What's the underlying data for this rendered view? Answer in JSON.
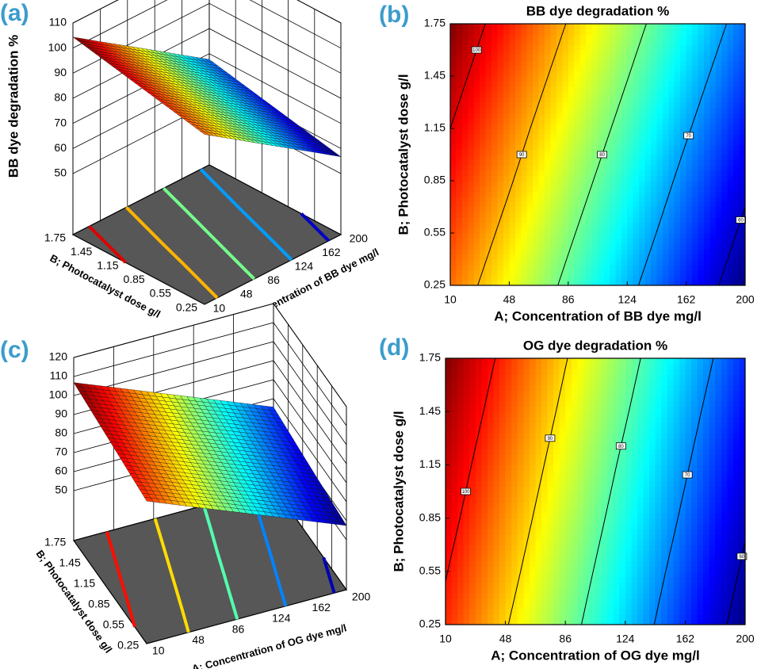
{
  "chart_data": [
    {
      "type": "surface",
      "panel_label": "(a)",
      "zlabel": "BB dye degradation %",
      "xlabel": "A; Concentration of BB dye mg/l",
      "ylabel": "B; Photocatalyst dose g/l",
      "x": [
        10,
        48,
        86,
        124,
        162,
        200
      ],
      "y": [
        0.25,
        0.55,
        0.85,
        1.15,
        1.45,
        1.75
      ],
      "z": [
        [
          93.4,
          86.1,
          78.7,
          71.4,
          64.1,
          56.7
        ],
        [
          95.6,
          88.3,
          80.9,
          73.6,
          66.3,
          58.9
        ],
        [
          97.8,
          90.5,
          83.1,
          75.8,
          68.4,
          61.1
        ],
        [
          100.0,
          92.6,
          85.3,
          78.0,
          70.6,
          63.3
        ],
        [
          102.2,
          94.8,
          87.5,
          80.2,
          72.8,
          65.5
        ],
        [
          104.4,
          97.0,
          89.7,
          82.4,
          75.0,
          67.7
        ]
      ],
      "xlim": [
        10,
        200
      ],
      "ylim": [
        0.25,
        1.75
      ],
      "zlim": [
        50,
        110
      ],
      "xticks": [
        10,
        48,
        86,
        124,
        162,
        200
      ],
      "yticks": [
        0.25,
        0.55,
        0.85,
        1.15,
        1.45,
        1.75
      ],
      "zticks": [
        50,
        60,
        70,
        80,
        90,
        100,
        110
      ],
      "contour_levels": [
        60,
        70,
        80,
        90,
        100
      ],
      "colormap": "jet",
      "floor_color": "#575757"
    },
    {
      "type": "contour",
      "panel_label": "(b)",
      "title": "BB dye degradation %",
      "xlabel": "A; Concentration of BB dye mg/l",
      "ylabel": "B; Photocatalyst dose g/l",
      "x": [
        10,
        48,
        86,
        124,
        162,
        200
      ],
      "y": [
        0.25,
        0.55,
        0.85,
        1.15,
        1.45,
        1.75
      ],
      "z": [
        [
          93.4,
          86.1,
          78.7,
          71.4,
          64.1,
          56.7
        ],
        [
          95.6,
          88.3,
          80.9,
          73.6,
          66.3,
          58.9
        ],
        [
          97.8,
          90.5,
          83.1,
          75.8,
          68.4,
          61.1
        ],
        [
          100.0,
          92.6,
          85.3,
          78.0,
          70.6,
          63.3
        ],
        [
          102.2,
          94.8,
          87.5,
          80.2,
          72.8,
          65.5
        ],
        [
          104.4,
          97.0,
          89.7,
          82.4,
          75.0,
          67.7
        ]
      ],
      "xlim": [
        10,
        200
      ],
      "ylim": [
        0.25,
        1.75
      ],
      "xticks": [
        10,
        48,
        86,
        124,
        162,
        200
      ],
      "yticks": [
        0.25,
        0.55,
        0.85,
        1.15,
        1.45,
        1.75
      ],
      "contour_levels": [
        60,
        70,
        80,
        90,
        100
      ],
      "colormap": "jet"
    },
    {
      "type": "surface",
      "panel_label": "(c)",
      "xlabel": "A; Concentration of OG dye mg/l",
      "ylabel": "B; Photocatalyst dose g/l",
      "x": [
        10,
        48,
        86,
        124,
        162,
        200
      ],
      "y": [
        0.25,
        0.55,
        0.85,
        1.15,
        1.45,
        1.75
      ],
      "z": [
        [
          98.7,
          90.4,
          82.2,
          74.0,
          65.7,
          57.5
        ],
        [
          100.3,
          92.1,
          83.8,
          75.6,
          67.3,
          59.1
        ],
        [
          102.0,
          93.7,
          85.5,
          77.2,
          69.0,
          60.7
        ],
        [
          103.6,
          95.3,
          87.1,
          78.8,
          70.6,
          62.3
        ],
        [
          105.2,
          97.0,
          88.7,
          80.5,
          72.2,
          64.0
        ],
        [
          106.8,
          98.6,
          90.3,
          82.1,
          73.9,
          65.6
        ]
      ],
      "xlim": [
        10,
        200
      ],
      "ylim": [
        0.25,
        1.75
      ],
      "zlim": [
        50,
        120
      ],
      "xticks": [
        10,
        48,
        86,
        124,
        162,
        200
      ],
      "yticks": [
        0.25,
        0.55,
        0.85,
        1.15,
        1.45,
        1.75
      ],
      "zticks": [
        50,
        60,
        70,
        80,
        90,
        100,
        110,
        120
      ],
      "contour_levels": [
        60,
        70,
        80,
        90,
        100
      ],
      "colormap": "jet",
      "floor_color": "#575757"
    },
    {
      "type": "contour",
      "panel_label": "(d)",
      "title": "OG dye degradation %",
      "xlabel": "A; Concentration of OG dye mg/l",
      "ylabel": "B; Photocatalyst dose g/l",
      "x": [
        10,
        48,
        86,
        124,
        162,
        200
      ],
      "y": [
        0.25,
        0.55,
        0.85,
        1.15,
        1.45,
        1.75
      ],
      "z": [
        [
          98.7,
          90.4,
          82.2,
          74.0,
          65.7,
          57.5
        ],
        [
          100.3,
          92.1,
          83.8,
          75.6,
          67.3,
          59.1
        ],
        [
          102.0,
          93.7,
          85.5,
          77.2,
          69.0,
          60.7
        ],
        [
          103.6,
          95.3,
          87.1,
          78.8,
          70.6,
          62.3
        ],
        [
          105.2,
          97.0,
          88.7,
          80.5,
          72.2,
          64.0
        ],
        [
          106.8,
          98.6,
          90.3,
          82.1,
          73.9,
          65.6
        ]
      ],
      "xlim": [
        10,
        200
      ],
      "ylim": [
        0.25,
        1.75
      ],
      "xticks": [
        10,
        48,
        86,
        124,
        162,
        200
      ],
      "yticks": [
        0.25,
        0.55,
        0.85,
        1.15,
        1.45,
        1.75
      ],
      "contour_levels": [
        60,
        70,
        80,
        90,
        100
      ],
      "colormap": "jet"
    }
  ]
}
